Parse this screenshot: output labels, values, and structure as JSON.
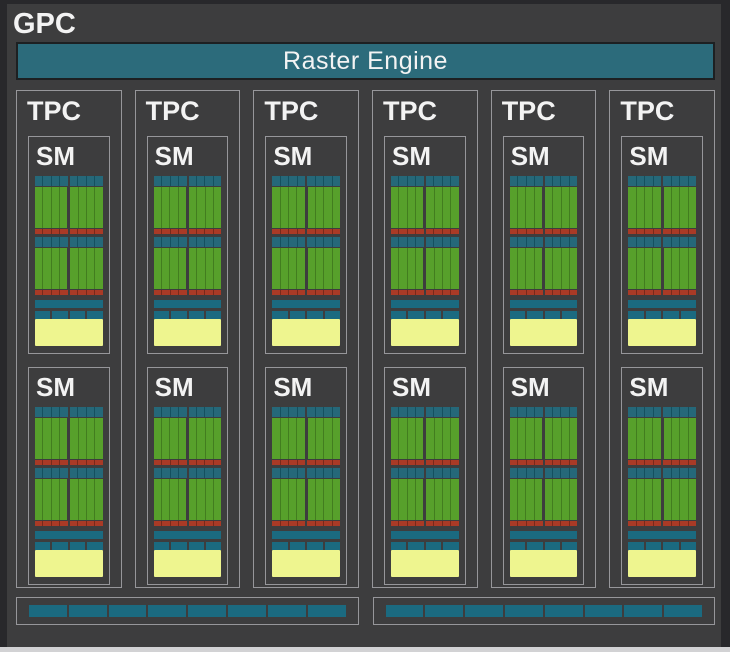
{
  "gpc": {
    "label": "GPC"
  },
  "raster_engine": {
    "label": "Raster Engine"
  },
  "tpc": {
    "label": "TPC",
    "count": 6
  },
  "sm": {
    "label": "SM",
    "per_tpc": 2,
    "processing_blocks": 2,
    "core_groups_per_block": 2,
    "core_columns_per_group": 4,
    "scheduler_ticks_per_group": 4,
    "sfu_cells_per_segment": 4,
    "ldst_segments": 4
  },
  "bottom_bars": {
    "count": 2,
    "segments_each": 8
  },
  "colors": {
    "background": "#3d3d3e",
    "edge_dark": "#28282b",
    "bottom_strip": "#d2d2d4",
    "text": "#f3f3f3",
    "border_light": "#96969a",
    "raster_fill": "#2c6b7b",
    "raster_border": "#1d2022",
    "scheduler_teal": "#256879",
    "scheduler_divider": "#14505f",
    "bar_teal": "#1b6a80",
    "core_green": "#57a02b",
    "core_divider": "#427d1f",
    "sfu_red": "#a93a26",
    "sfu_divider": "#78291a",
    "tensor_yellow": "#eef58f"
  }
}
